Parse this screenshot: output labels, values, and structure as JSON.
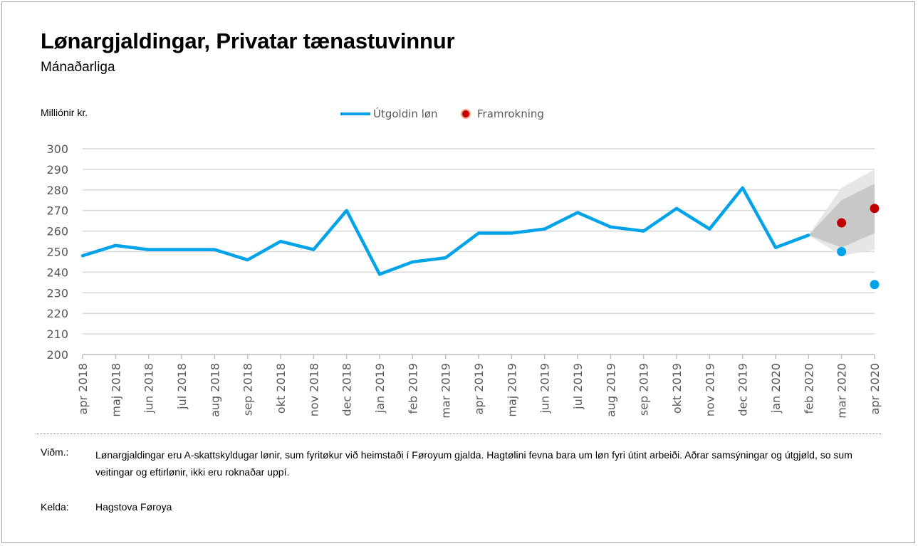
{
  "chart_data": {
    "type": "line",
    "title": "Lønargjaldingar, Privatar tænastuvinnur",
    "subtitle": "Mánaðarliga",
    "ylabel": "Milliónir kr.",
    "xlabel": "",
    "ylim": [
      200,
      300
    ],
    "yticks": [
      200,
      210,
      220,
      230,
      240,
      250,
      260,
      270,
      280,
      290,
      300
    ],
    "grid": true,
    "legend_position": "top-center",
    "categories": [
      "apr 2018",
      "maj 2018",
      "jun 2018",
      "jul 2018",
      "aug 2018",
      "sep 2018",
      "okt 2018",
      "nov 2018",
      "dec 2018",
      "jan 2019",
      "feb 2019",
      "mar 2019",
      "apr 2019",
      "maj 2019",
      "jun 2019",
      "jul 2019",
      "aug 2019",
      "sep 2019",
      "okt 2019",
      "nov 2019",
      "dec 2019",
      "jan 2020",
      "feb 2020",
      "mar 2020",
      "apr 2020"
    ],
    "series": [
      {
        "name": "Útgoldin løn",
        "color": "#00a2e8",
        "values": [
          248,
          253,
          251,
          251,
          251,
          246,
          255,
          251,
          270,
          239,
          245,
          247,
          259,
          259,
          261,
          269,
          262,
          260,
          271,
          261,
          281,
          252,
          258,
          null,
          null
        ]
      },
      {
        "name": "Framrokning",
        "color": "#c00000",
        "values": [
          null,
          null,
          null,
          null,
          null,
          null,
          null,
          null,
          null,
          null,
          null,
          null,
          null,
          null,
          null,
          null,
          null,
          null,
          null,
          null,
          null,
          null,
          null,
          264,
          271
        ]
      }
    ],
    "extra_points": {
      "name": "Útgoldin løn",
      "color": "#00a2e8",
      "values": [
        null,
        null,
        null,
        null,
        null,
        null,
        null,
        null,
        null,
        null,
        null,
        null,
        null,
        null,
        null,
        null,
        null,
        null,
        null,
        null,
        null,
        null,
        null,
        250,
        234
      ]
    },
    "forecast_band": {
      "anchor_value": 258,
      "outer_low": [
        null,
        248,
        251
      ],
      "outer_high": [
        null,
        281,
        290
      ],
      "inner_low": [
        null,
        252,
        259
      ],
      "inner_high": [
        null,
        275,
        283
      ],
      "outer_color": "#e6e6e6",
      "inner_color": "#c8c8c8"
    }
  },
  "legend": {
    "line_label": "Útgoldin løn",
    "dot_label": "Framrokning"
  },
  "footer": {
    "note_label": "Viðm.:",
    "note_text": "Lønargjaldingar eru A-skattskyldugar lønir, sum fyritøkur við heimstaði í Føroyum gjalda. Hagtølini fevna bara um løn fyri útint arbeiði. Aðrar samsýningar og útgjøld, so sum veitingar og eftirlønir, ikki eru roknaðar uppí.",
    "source_label": "Kelda:",
    "source_text": "Hagstova Føroya"
  }
}
